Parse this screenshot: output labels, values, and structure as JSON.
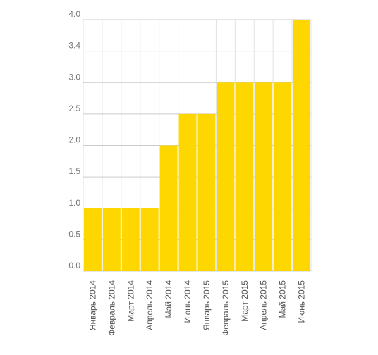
{
  "colors": {
    "bar": "#FFD700",
    "grid": "#cccccc",
    "gridMinor": "#e2e2e2"
  },
  "chart_data": {
    "type": "bar",
    "categories": [
      "Январь 2014",
      "Февраль 2014",
      "Март 2014",
      "Апрель 2014",
      "Май 2014",
      "Июнь 2014",
      "Январь 2015",
      "Февраль 2015",
      "Март 2015",
      "Апрель 2015",
      "Май 2015",
      "Июнь 2015"
    ],
    "values": [
      1.0,
      1.0,
      1.0,
      1.0,
      2.0,
      2.5,
      2.5,
      3.0,
      3.0,
      3.0,
      3.0,
      4.0
    ],
    "y_ticks": [
      "0.0",
      "0.5",
      "1.0",
      "1.5",
      "2.0",
      "2.5",
      "3.0",
      "3.4",
      "4.0"
    ],
    "ylim": [
      0,
      4
    ],
    "grid": true
  }
}
